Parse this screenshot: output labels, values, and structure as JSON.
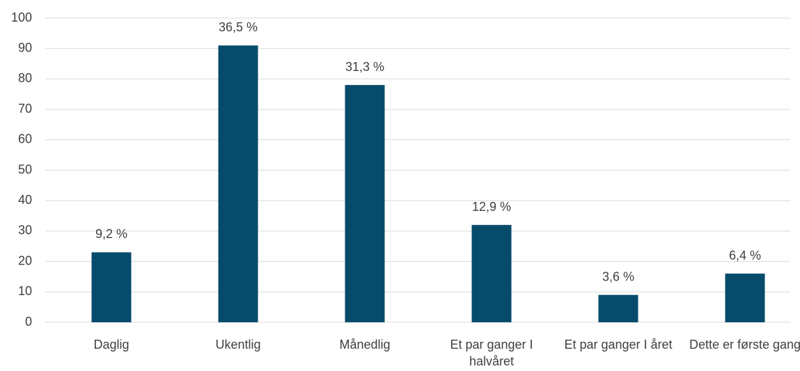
{
  "chart_data": {
    "type": "bar",
    "categories": [
      "Daglig",
      "Ukentlig",
      "Månedlig",
      "Et par ganger I halvåret",
      "Et par ganger I året",
      "Dette er første gang"
    ],
    "values": [
      23,
      91,
      78,
      32,
      9,
      16
    ],
    "annotations": [
      "9,2 %",
      "36,5 %",
      "31,3 %",
      "12,9 %",
      "3,6 %",
      "6,4 %"
    ],
    "color": "#064b6b",
    "ylim": [
      0,
      100
    ],
    "yticks": [
      0,
      10,
      20,
      30,
      40,
      50,
      60,
      70,
      80,
      90,
      100
    ],
    "grid": true
  }
}
